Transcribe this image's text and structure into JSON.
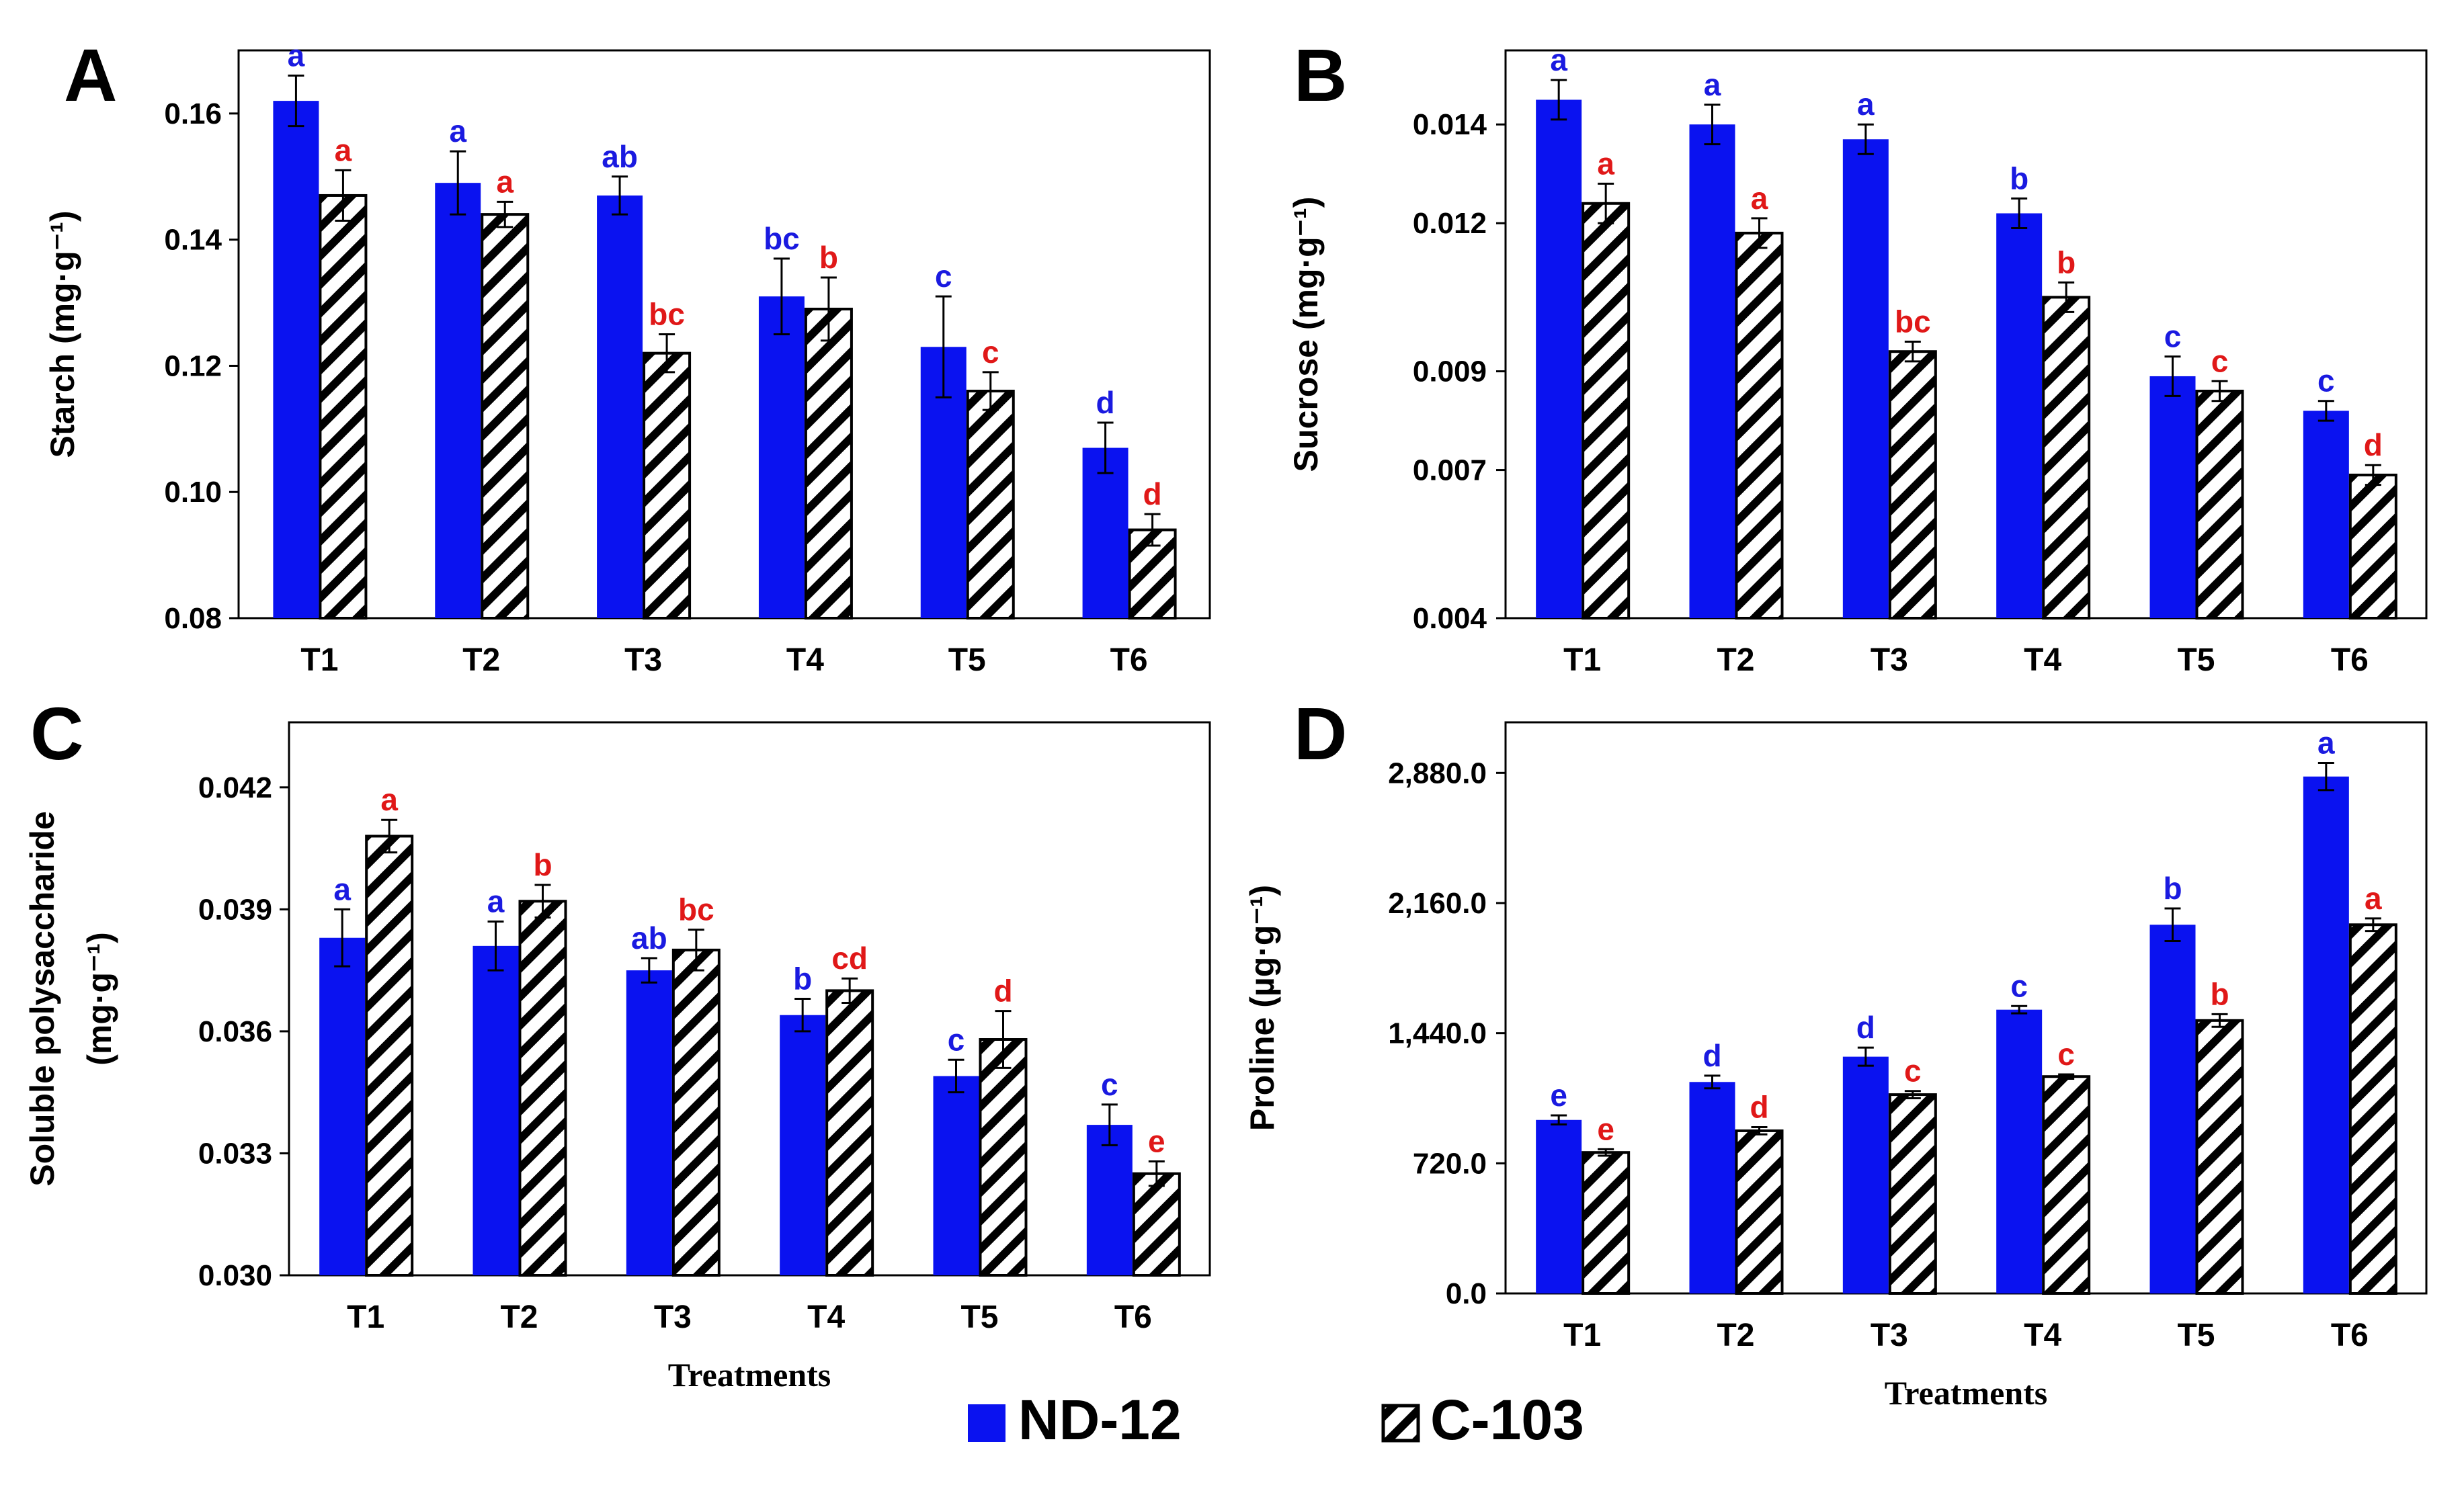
{
  "colors": {
    "nd": "#0a12f0",
    "c": "#ffffff",
    "nd_sig": "#1a1ae0",
    "c_sig": "#e01818",
    "axis": "#000000"
  },
  "legend": {
    "nd12": "ND-12",
    "c103": "C-103"
  },
  "chart_data": [
    {
      "panel": "A",
      "type": "bar",
      "title": "",
      "ylabel": "Starch (mg·g⁻¹)",
      "xlabel": "",
      "categories": [
        "T1",
        "T2",
        "T3",
        "T4",
        "T5",
        "T6"
      ],
      "ylim": [
        0.08,
        0.17
      ],
      "yticks": [
        0.08,
        0.1,
        0.12,
        0.14,
        0.16
      ],
      "ytick_labels": [
        "0.08",
        "0.10",
        "0.12",
        "0.14",
        "0.16"
      ],
      "series": [
        {
          "name": "ND-12",
          "values": [
            0.162,
            0.149,
            0.147,
            0.131,
            0.123,
            0.107
          ],
          "errors": [
            0.004,
            0.005,
            0.003,
            0.006,
            0.008,
            0.004
          ],
          "sig": [
            "a",
            "a",
            "ab",
            "bc",
            "c",
            "d"
          ]
        },
        {
          "name": "C-103",
          "values": [
            0.147,
            0.144,
            0.122,
            0.129,
            0.116,
            0.094
          ],
          "errors": [
            0.004,
            0.002,
            0.003,
            0.005,
            0.003,
            0.0025
          ],
          "sig": [
            "a",
            "a",
            "bc",
            "b",
            "c",
            "d"
          ]
        }
      ]
    },
    {
      "panel": "B",
      "type": "bar",
      "title": "",
      "ylabel": "Sucrose (mg·g⁻¹)",
      "xlabel": "",
      "categories": [
        "T1",
        "T2",
        "T3",
        "T4",
        "T5",
        "T6"
      ],
      "ylim": [
        0.004,
        0.0155
      ],
      "yticks": [
        0.004,
        0.007,
        0.009,
        0.012,
        0.014
      ],
      "ytick_labels": [
        "0.004",
        "0.007",
        "0.009",
        "0.012",
        "0.014"
      ],
      "series": [
        {
          "name": "ND-12",
          "values": [
            0.0145,
            0.014,
            0.0137,
            0.0122,
            0.0089,
            0.0082
          ],
          "errors": [
            0.0004,
            0.0004,
            0.0003,
            0.0003,
            0.0004,
            0.0002
          ],
          "sig": [
            "a",
            "a",
            "a",
            "b",
            "c",
            "c"
          ]
        },
        {
          "name": "C-103",
          "values": [
            0.0124,
            0.0118,
            0.0094,
            0.0105,
            0.0086,
            0.0069
          ],
          "errors": [
            0.0004,
            0.0003,
            0.0002,
            0.0003,
            0.0002,
            0.0002
          ],
          "sig": [
            "a",
            "a",
            "bc",
            "b",
            "c",
            "d"
          ]
        }
      ]
    },
    {
      "panel": "C",
      "type": "bar",
      "title": "",
      "ylabel": "Soluble polysaccharide",
      "ylabel2": "(mg·g⁻¹)",
      "xlabel": "Treatments",
      "categories": [
        "T1",
        "T2",
        "T3",
        "T4",
        "T5",
        "T6"
      ],
      "ylim": [
        0.03,
        0.0436
      ],
      "yticks": [
        0.03,
        0.033,
        0.036,
        0.039,
        0.042
      ],
      "ytick_labels": [
        "0.030",
        "0.033",
        "0.036",
        "0.039",
        "0.042"
      ],
      "series": [
        {
          "name": "ND-12",
          "values": [
            0.0383,
            0.0381,
            0.0375,
            0.0364,
            0.0349,
            0.0337
          ],
          "errors": [
            0.0007,
            0.0006,
            0.0003,
            0.0004,
            0.0004,
            0.0005
          ],
          "sig": [
            "a",
            "a",
            "ab",
            "b",
            "c",
            "c"
          ]
        },
        {
          "name": "C-103",
          "values": [
            0.0408,
            0.0392,
            0.038,
            0.037,
            0.0358,
            0.0325
          ],
          "errors": [
            0.0004,
            0.0004,
            0.0005,
            0.0003,
            0.0007,
            0.0003
          ],
          "sig": [
            "a",
            "b",
            "bc",
            "cd",
            "d",
            "e"
          ]
        }
      ]
    },
    {
      "panel": "D",
      "type": "bar",
      "title": "",
      "ylabel": "Proline (µg·g⁻¹)",
      "xlabel": "Treatments",
      "categories": [
        "T1",
        "T2",
        "T3",
        "T4",
        "T5",
        "T6"
      ],
      "ylim": [
        0,
        3160
      ],
      "yticks": [
        0,
        720,
        1440,
        2160,
        2880
      ],
      "ytick_labels": [
        "0.0",
        "720.0",
        "1,440.0",
        "2,160.0",
        "2,880.0"
      ],
      "series": [
        {
          "name": "ND-12",
          "values": [
            960,
            1170,
            1310,
            1570,
            2040,
            2860
          ],
          "errors": [
            25,
            35,
            50,
            20,
            90,
            75
          ],
          "sig": [
            "e",
            "d",
            "d",
            "c",
            "b",
            "a"
          ]
        },
        {
          "name": "C-103",
          "values": [
            780,
            900,
            1100,
            1200,
            1510,
            2040
          ],
          "errors": [
            18,
            20,
            20,
            12,
            35,
            35
          ],
          "sig": [
            "e",
            "d",
            "c",
            "c",
            "b",
            "a"
          ]
        }
      ]
    }
  ]
}
